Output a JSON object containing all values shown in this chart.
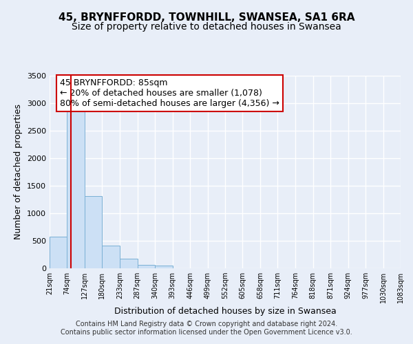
{
  "title": "45, BRYNFFORDD, TOWNHILL, SWANSEA, SA1 6RA",
  "subtitle": "Size of property relative to detached houses in Swansea",
  "xlabel": "Distribution of detached houses by size in Swansea",
  "ylabel": "Number of detached properties",
  "bar_edges": [
    21,
    74,
    127,
    180,
    233,
    287,
    340,
    393,
    446,
    499,
    552,
    605,
    658,
    711,
    764,
    818,
    871,
    924,
    977,
    1030,
    1083
  ],
  "bar_heights": [
    570,
    2920,
    1310,
    415,
    175,
    65,
    50,
    0,
    0,
    0,
    0,
    0,
    0,
    0,
    0,
    0,
    0,
    0,
    0,
    0
  ],
  "property_line_x": 85,
  "bar_color": "#cce0f5",
  "bar_edgecolor": "#7ab0d4",
  "line_color": "#cc0000",
  "ylim": [
    0,
    3500
  ],
  "yticks": [
    0,
    500,
    1000,
    1500,
    2000,
    2500,
    3000,
    3500
  ],
  "annotation_title": "45 BRYNFFORDD: 85sqm",
  "annotation_line1": "← 20% of detached houses are smaller (1,078)",
  "annotation_line2": "80% of semi-detached houses are larger (4,356) →",
  "annotation_box_color": "#ffffff",
  "annotation_box_edgecolor": "#cc0000",
  "footer_line1": "Contains HM Land Registry data © Crown copyright and database right 2024.",
  "footer_line2": "Contains public sector information licensed under the Open Government Licence v3.0.",
  "background_color": "#e8eef8",
  "grid_color": "#ffffff",
  "title_fontsize": 11,
  "subtitle_fontsize": 10,
  "axis_label_fontsize": 9,
  "tick_fontsize": 8,
  "annotation_fontsize": 9,
  "footer_fontsize": 7
}
